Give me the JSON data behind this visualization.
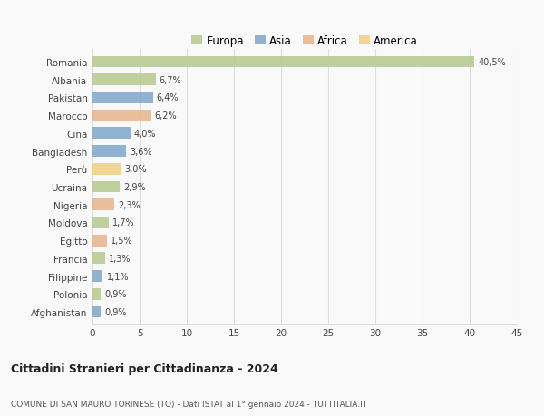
{
  "countries": [
    "Romania",
    "Albania",
    "Pakistan",
    "Marocco",
    "Cina",
    "Bangladesh",
    "Perù",
    "Ucraina",
    "Nigeria",
    "Moldova",
    "Egitto",
    "Francia",
    "Filippine",
    "Polonia",
    "Afghanistan"
  ],
  "values": [
    40.5,
    6.7,
    6.4,
    6.2,
    4.0,
    3.6,
    3.0,
    2.9,
    2.3,
    1.7,
    1.5,
    1.3,
    1.1,
    0.9,
    0.9
  ],
  "labels": [
    "40,5%",
    "6,7%",
    "6,4%",
    "6,2%",
    "4,0%",
    "3,6%",
    "3,0%",
    "2,9%",
    "2,3%",
    "1,7%",
    "1,5%",
    "1,3%",
    "1,1%",
    "0,9%",
    "0,9%"
  ],
  "colors": [
    "#b5c98e",
    "#b5c98e",
    "#7da7c9",
    "#e8b48a",
    "#7da7c9",
    "#7da7c9",
    "#f0d080",
    "#b5c98e",
    "#e8b48a",
    "#b5c98e",
    "#e8b48a",
    "#b5c98e",
    "#7da7c9",
    "#b5c98e",
    "#7da7c9"
  ],
  "legend_labels": [
    "Europa",
    "Asia",
    "Africa",
    "America"
  ],
  "legend_colors": [
    "#b5c98e",
    "#7da7c9",
    "#e8b48a",
    "#f0d080"
  ],
  "xlim": [
    0,
    45
  ],
  "xticks": [
    0,
    5,
    10,
    15,
    20,
    25,
    30,
    35,
    40,
    45
  ],
  "title": "Cittadini Stranieri per Cittadinanza - 2024",
  "subtitle": "COMUNE DI SAN MAURO TORINESE (TO) - Dati ISTAT al 1° gennaio 2024 - TUTTITALIA.IT",
  "bg_color": "#f9f9f9",
  "grid_color": "#dddddd",
  "bar_height": 0.65
}
